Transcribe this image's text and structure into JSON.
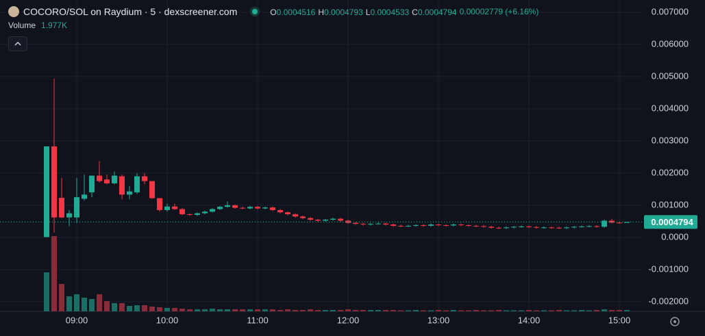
{
  "header": {
    "title": "COCORO/SOL on Raydium · 5 · dexscreener.com",
    "ohlc": [
      {
        "key": "O",
        "value": "0.0004516"
      },
      {
        "key": "H",
        "value": "0.0004793"
      },
      {
        "key": "L",
        "value": "0.0004533"
      },
      {
        "key": "C",
        "value": "0.0004794"
      }
    ],
    "change": "0.00002779 (+6.16%)",
    "volume_label": "Volume",
    "volume_value": "1.977K"
  },
  "chart_data": {
    "type": "candlestick",
    "up_color": "#22ab94",
    "down_color": "#f23645",
    "up_volume_color": "#1b6e63",
    "down_volume_color": "#8a2b3a",
    "grid": true,
    "x": [
      "08:40",
      "08:45",
      "08:50",
      "08:55",
      "09:00",
      "09:05",
      "09:10",
      "09:15",
      "09:20",
      "09:25",
      "09:30",
      "09:35",
      "09:40",
      "09:45",
      "09:50",
      "09:55",
      "10:00",
      "10:05",
      "10:10",
      "10:15",
      "10:20",
      "10:25",
      "10:30",
      "10:35",
      "10:40",
      "10:45",
      "10:50",
      "10:55",
      "11:00",
      "11:05",
      "11:10",
      "11:15",
      "11:20",
      "11:25",
      "11:30",
      "11:35",
      "11:40",
      "11:45",
      "11:50",
      "11:55",
      "12:00",
      "12:05",
      "12:10",
      "12:15",
      "12:20",
      "12:25",
      "12:30",
      "12:35",
      "12:40",
      "12:45",
      "12:50",
      "12:55",
      "13:00",
      "13:05",
      "13:10",
      "13:15",
      "13:20",
      "13:25",
      "13:30",
      "13:35",
      "13:40",
      "13:45",
      "13:50",
      "13:55",
      "14:00",
      "14:05",
      "14:10",
      "14:15",
      "14:20",
      "14:25",
      "14:30",
      "14:35",
      "14:40",
      "14:45",
      "14:50",
      "14:55",
      "15:00",
      "15:05"
    ],
    "open": [
      1e-05,
      0.00283,
      0.00123,
      0.00062,
      0.00062,
      0.0012,
      0.0014,
      0.00192,
      0.0018,
      0.00168,
      0.0019,
      0.00133,
      0.0014,
      0.0019,
      0.00175,
      0.00122,
      0.00085,
      0.00096,
      0.00088,
      0.00072,
      0.0007,
      0.00075,
      0.0008,
      0.00088,
      0.00095,
      0.001,
      0.00092,
      0.0009,
      0.00095,
      0.0009,
      0.00093,
      0.00085,
      0.00078,
      0.00072,
      0.00065,
      0.0006,
      0.00055,
      0.00052,
      0.00055,
      0.00058,
      0.00052,
      0.00045,
      0.00042,
      0.0004,
      0.00042,
      0.00043,
      0.0004,
      0.00036,
      0.00035,
      0.00036,
      0.00038,
      0.00036,
      0.0004,
      0.00038,
      0.00037,
      0.0004,
      0.00038,
      0.00036,
      0.00035,
      0.00033,
      0.0003,
      0.00029,
      0.00031,
      0.00033,
      0.00034,
      0.00032,
      0.0003,
      0.00031,
      0.0003,
      0.00029,
      0.00031,
      0.00033,
      0.00034,
      0.00035,
      0.00033,
      0.00052,
      0.00046,
      0.0004516
    ],
    "high": [
      0.00283,
      0.00494,
      0.00185,
      0.00085,
      0.00185,
      0.00195,
      0.00192,
      0.00237,
      0.00195,
      0.00205,
      0.00195,
      0.0016,
      0.002,
      0.002,
      0.00175,
      0.00122,
      0.00105,
      0.00105,
      0.00091,
      0.00075,
      0.00078,
      0.00083,
      0.00091,
      0.00098,
      0.00112,
      0.00103,
      0.00095,
      0.00098,
      0.00098,
      0.00096,
      0.00096,
      0.00088,
      0.00081,
      0.00075,
      0.00068,
      0.00063,
      0.00058,
      0.00058,
      0.00061,
      0.00061,
      0.00055,
      0.00048,
      0.00045,
      0.00045,
      0.00046,
      0.00046,
      0.00043,
      0.00039,
      0.00039,
      0.00041,
      0.00041,
      0.00043,
      0.00043,
      0.00041,
      0.00043,
      0.00043,
      0.00041,
      0.00039,
      0.00038,
      0.00036,
      0.00033,
      0.00034,
      0.00036,
      0.00037,
      0.00037,
      0.00035,
      0.00034,
      0.00034,
      0.00033,
      0.00034,
      0.00036,
      0.00037,
      0.00038,
      0.00038,
      0.00055,
      0.00058,
      0.00049,
      0.0004793
    ],
    "low": [
      0,
      0.00015,
      0.0006,
      0.00035,
      0.00045,
      0.00115,
      0.00125,
      0.0017,
      0.00165,
      0.00165,
      0.00118,
      0.00118,
      0.00135,
      0.00165,
      0.0012,
      0.0008,
      0.0008,
      0.00085,
      0.00069,
      0.00067,
      0.00067,
      0.00072,
      0.00077,
      0.00085,
      0.00092,
      0.00089,
      0.00087,
      0.00087,
      0.00087,
      0.00087,
      0.00082,
      0.00075,
      0.00069,
      0.00062,
      0.00057,
      0.00052,
      0.00049,
      0.00049,
      0.00052,
      0.00049,
      0.00042,
      0.00039,
      0.00037,
      0.00037,
      0.00039,
      0.00037,
      0.00033,
      0.00032,
      0.00032,
      0.00033,
      0.00033,
      0.00033,
      0.00035,
      0.00034,
      0.00034,
      0.00035,
      0.00033,
      0.00032,
      0.0003,
      0.00027,
      0.00026,
      0.00026,
      0.00028,
      0.0003,
      0.00029,
      0.00027,
      0.00027,
      0.00027,
      0.00026,
      0.00026,
      0.00028,
      0.0003,
      0.00031,
      0.0003,
      0.0003,
      0.00043,
      0.00042,
      0.0004533
    ],
    "close": [
      0.00283,
      0.00062,
      0.00062,
      0.00075,
      0.00125,
      0.00133,
      0.00192,
      0.00175,
      0.00168,
      0.00192,
      0.00133,
      0.00143,
      0.0019,
      0.00175,
      0.00122,
      0.00085,
      0.00096,
      0.00088,
      0.00072,
      0.0007,
      0.00075,
      0.0008,
      0.00088,
      0.00095,
      0.001,
      0.00092,
      0.0009,
      0.00095,
      0.0009,
      0.00093,
      0.00085,
      0.00078,
      0.00072,
      0.00065,
      0.0006,
      0.00055,
      0.00052,
      0.00055,
      0.00058,
      0.00052,
      0.00045,
      0.00042,
      0.0004,
      0.00042,
      0.00043,
      0.0004,
      0.00036,
      0.00035,
      0.00036,
      0.00038,
      0.00036,
      0.0004,
      0.00038,
      0.00037,
      0.0004,
      0.00038,
      0.00036,
      0.00035,
      0.00033,
      0.0003,
      0.00029,
      0.00031,
      0.00033,
      0.00034,
      0.00032,
      0.0003,
      0.00031,
      0.0003,
      0.00029,
      0.00031,
      0.00033,
      0.00034,
      0.00035,
      0.00033,
      0.00052,
      0.00046,
      0.00045,
      0.0004794
    ],
    "volume": [
      57000,
      110000,
      40000,
      22000,
      25000,
      20000,
      18000,
      25000,
      15000,
      12000,
      12000,
      8000,
      9000,
      9000,
      7000,
      6000,
      5000,
      5000,
      4000,
      3000,
      3000,
      3000,
      4000,
      3000,
      3000,
      3000,
      3000,
      3000,
      3000,
      3000,
      3000,
      2000,
      3000,
      2000,
      2000,
      3000,
      2000,
      2000,
      2000,
      2000,
      3000,
      2000,
      2000,
      2000,
      2000,
      2000,
      2000,
      1500,
      1500,
      2000,
      1500,
      1500,
      2000,
      1500,
      2000,
      1500,
      1500,
      2000,
      1500,
      1500,
      2000,
      1500,
      1500,
      1500,
      2000,
      1500,
      1500,
      1500,
      2000,
      1500,
      1500,
      2000,
      1500,
      2000,
      3000,
      2000,
      2000,
      1977
    ],
    "last_price": 0.0004794,
    "ylim": [
      -0.0023,
      0.00738
    ],
    "yticks": [
      {
        "value": 0.007,
        "label": "0.007000"
      },
      {
        "value": 0.006,
        "label": "0.006000"
      },
      {
        "value": 0.005,
        "label": "0.005000"
      },
      {
        "value": 0.004,
        "label": "0.004000"
      },
      {
        "value": 0.003,
        "label": "0.003000"
      },
      {
        "value": 0.002,
        "label": "0.002000"
      },
      {
        "value": 0.001,
        "label": "0.001000"
      },
      {
        "value": 0,
        "label": "0.0000"
      },
      {
        "value": -0.001,
        "label": "-0.001000"
      },
      {
        "value": -0.002,
        "label": "-0.002000"
      }
    ],
    "xticks": [
      "09:00",
      "10:00",
      "11:00",
      "12:00",
      "13:00",
      "14:00",
      "15:00"
    ]
  }
}
